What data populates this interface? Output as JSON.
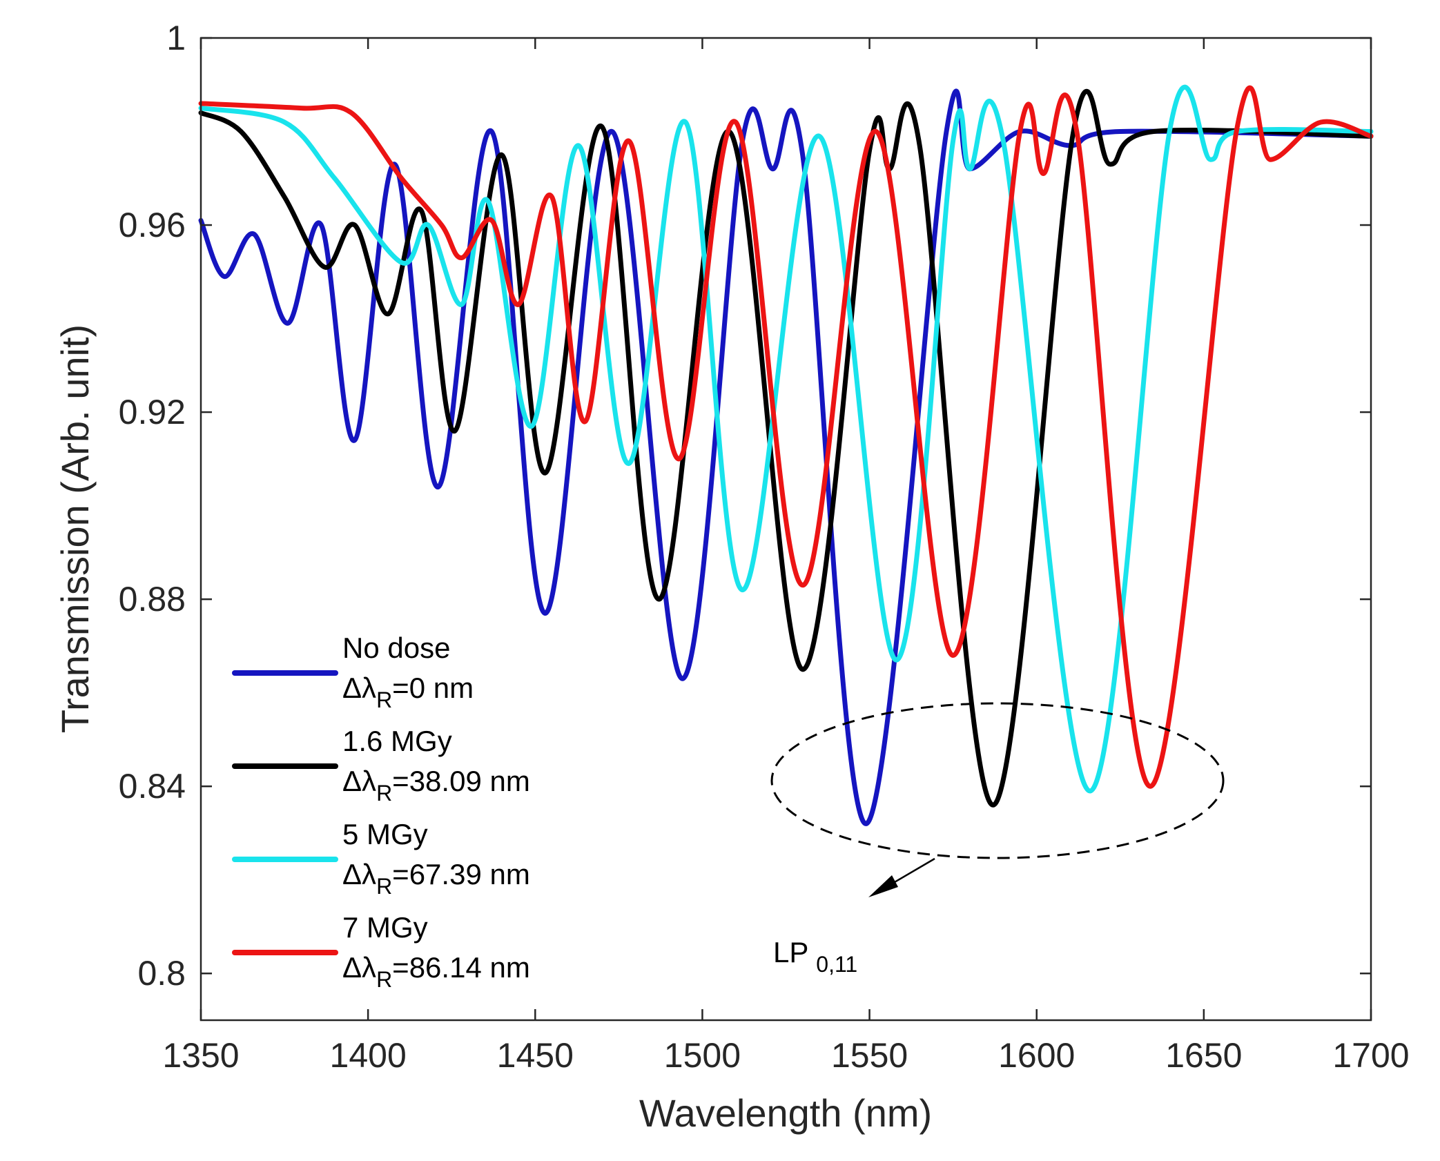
{
  "chart_data": {
    "type": "line",
    "title": "",
    "xlabel": "Wavelength (nm)",
    "ylabel": "Transmission (Arb. unit)",
    "xlim": [
      1350,
      1700
    ],
    "ylim": [
      0.79,
      1.0
    ],
    "xticks": [
      1350,
      1400,
      1450,
      1500,
      1550,
      1600,
      1650,
      1700
    ],
    "xtick_labels": [
      "1350",
      "1400",
      "1450",
      "1500",
      "1550",
      "1600",
      "1650",
      "1700"
    ],
    "yticks": [
      0.8,
      0.84,
      0.88,
      0.92,
      0.96,
      1.0
    ],
    "ytick_labels": [
      "0.8",
      "0.84",
      "0.88",
      "0.92",
      "0.96",
      "1"
    ],
    "grid": false,
    "legend_position": "bottom-left",
    "series": [
      {
        "name": "No dose",
        "shift_label": "=0 nm",
        "color": "#1515c0",
        "points": [
          [
            1350,
            0.961
          ],
          [
            1357,
            0.949
          ],
          [
            1366,
            0.958
          ],
          [
            1376,
            0.939
          ],
          [
            1386,
            0.96
          ],
          [
            1396,
            0.914
          ],
          [
            1408,
            0.973
          ],
          [
            1421,
            0.904
          ],
          [
            1437,
            0.98
          ],
          [
            1453,
            0.877
          ],
          [
            1473,
            0.98
          ],
          [
            1494,
            0.863
          ],
          [
            1512,
            0.978
          ],
          [
            1521,
            0.972
          ],
          [
            1530,
            0.975
          ],
          [
            1549,
            0.832
          ],
          [
            1573,
            0.98
          ],
          [
            1580,
            0.972
          ],
          [
            1595,
            0.98
          ],
          [
            1610,
            0.977
          ],
          [
            1625,
            0.98
          ],
          [
            1700,
            0.979
          ]
        ]
      },
      {
        "name": "1.6 MGy",
        "shift_label": "=38.09 nm",
        "color": "#000000",
        "points": [
          [
            1350,
            0.984
          ],
          [
            1362,
            0.98
          ],
          [
            1375,
            0.966
          ],
          [
            1387,
            0.951
          ],
          [
            1396,
            0.96
          ],
          [
            1406,
            0.941
          ],
          [
            1416,
            0.963
          ],
          [
            1426,
            0.916
          ],
          [
            1440,
            0.975
          ],
          [
            1453,
            0.907
          ],
          [
            1470,
            0.981
          ],
          [
            1487,
            0.88
          ],
          [
            1508,
            0.98
          ],
          [
            1530,
            0.865
          ],
          [
            1550,
            0.976
          ],
          [
            1556,
            0.972
          ],
          [
            1565,
            0.977
          ],
          [
            1587,
            0.836
          ],
          [
            1611,
            0.98
          ],
          [
            1622,
            0.973
          ],
          [
            1635,
            0.98
          ],
          [
            1700,
            0.979
          ]
        ]
      },
      {
        "name": "5 MGy",
        "shift_label": "=67.39 nm",
        "color": "#19e3ec",
        "points": [
          [
            1350,
            0.985
          ],
          [
            1375,
            0.982
          ],
          [
            1390,
            0.97
          ],
          [
            1410,
            0.952
          ],
          [
            1418,
            0.96
          ],
          [
            1428,
            0.943
          ],
          [
            1436,
            0.965
          ],
          [
            1449,
            0.917
          ],
          [
            1463,
            0.977
          ],
          [
            1478,
            0.909
          ],
          [
            1495,
            0.982
          ],
          [
            1512,
            0.882
          ],
          [
            1535,
            0.979
          ],
          [
            1558,
            0.867
          ],
          [
            1575,
            0.978
          ],
          [
            1580,
            0.972
          ],
          [
            1590,
            0.978
          ],
          [
            1616,
            0.839
          ],
          [
            1640,
            0.981
          ],
          [
            1652,
            0.974
          ],
          [
            1660,
            0.98
          ],
          [
            1700,
            0.98
          ]
        ]
      },
      {
        "name": "7 MGy",
        "shift_label": "=86.14 nm",
        "color": "#ec1414",
        "points": [
          [
            1350,
            0.986
          ],
          [
            1380,
            0.985
          ],
          [
            1395,
            0.984
          ],
          [
            1410,
            0.97
          ],
          [
            1422,
            0.96
          ],
          [
            1428,
            0.953
          ],
          [
            1437,
            0.961
          ],
          [
            1445,
            0.943
          ],
          [
            1455,
            0.966
          ],
          [
            1465,
            0.918
          ],
          [
            1478,
            0.978
          ],
          [
            1493,
            0.91
          ],
          [
            1510,
            0.982
          ],
          [
            1530,
            0.883
          ],
          [
            1552,
            0.98
          ],
          [
            1575,
            0.868
          ],
          [
            1595,
            0.98
          ],
          [
            1602,
            0.971
          ],
          [
            1612,
            0.98
          ],
          [
            1634,
            0.84
          ],
          [
            1660,
            0.981
          ],
          [
            1670,
            0.974
          ],
          [
            1685,
            0.982
          ],
          [
            1700,
            0.979
          ]
        ]
      }
    ],
    "annotations": [
      {
        "text": "LP",
        "subscript": "0,11",
        "target": "resonance dips near 0.84",
        "shape": "dashed ellipse with arrow"
      }
    ]
  },
  "legend": {
    "items": [
      {
        "line1": "No dose",
        "prefix": "Δλ",
        "sub": "R",
        "suffix": "=0 nm",
        "color": "#1515c0"
      },
      {
        "line1": "1.6 MGy",
        "prefix": "Δλ",
        "sub": "R",
        "suffix": "=38.09 nm",
        "color": "#000000"
      },
      {
        "line1": "5 MGy",
        "prefix": "Δλ",
        "sub": "R",
        "suffix": "=67.39 nm",
        "color": "#19e3ec"
      },
      {
        "line1": "7 MGy",
        "prefix": "Δλ",
        "sub": "R",
        "suffix": "=86.14 nm",
        "color": "#ec1414"
      }
    ]
  },
  "annotation": {
    "label": "LP",
    "subscript": "0,11"
  }
}
